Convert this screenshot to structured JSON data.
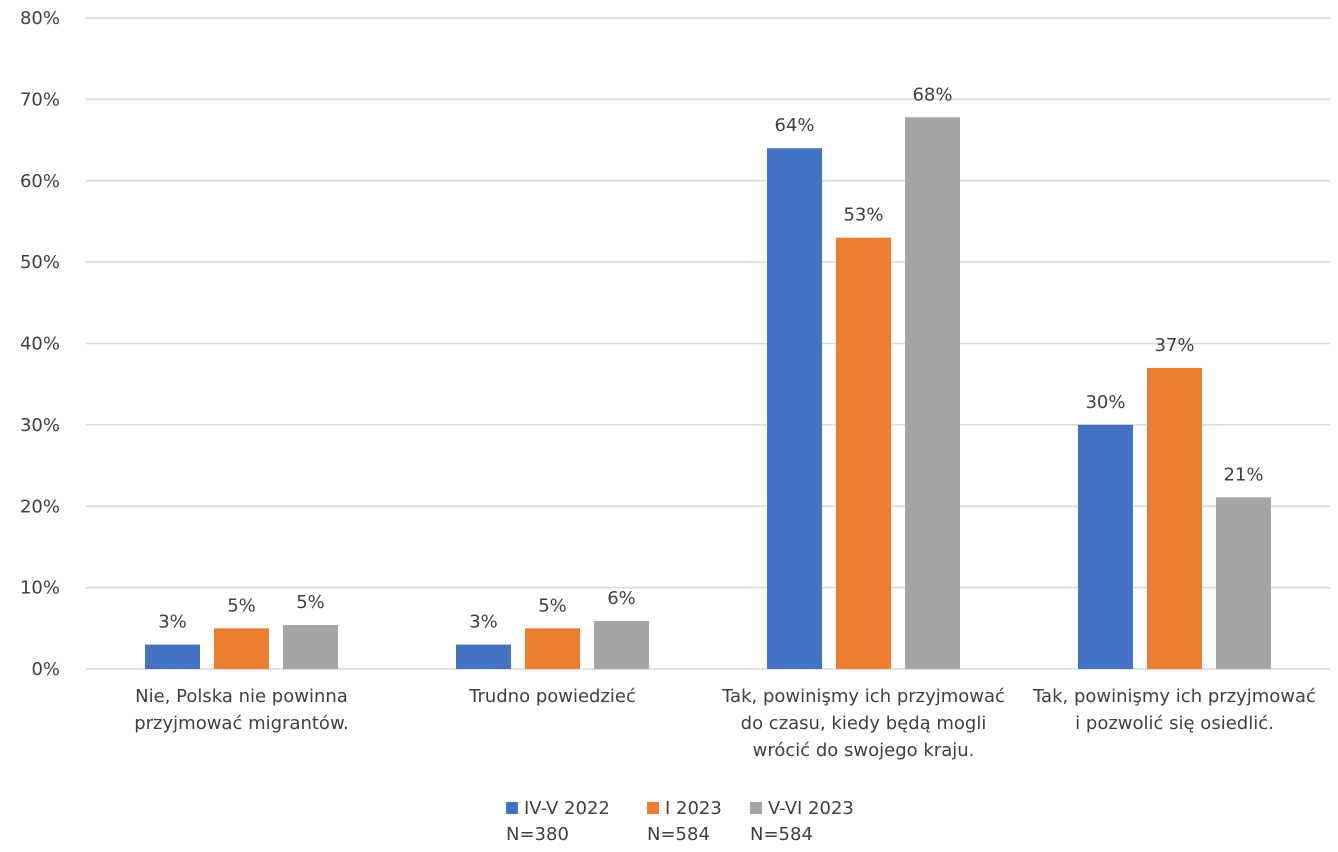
{
  "chart_data": {
    "type": "bar",
    "title": "",
    "xlabel": "",
    "ylabel": "",
    "ylim": [
      0,
      80
    ],
    "yticks": [
      "0%",
      "10%",
      "20%",
      "30%",
      "40%",
      "50%",
      "60%",
      "70%",
      "80%"
    ],
    "grid": true,
    "legend_position": "bottom",
    "categories": [
      [
        "Nie, Polska nie powinna",
        "przyjmować migrantów."
      ],
      [
        "Trudno powiedzieć"
      ],
      [
        "Tak, powinişmy ich przyjmować",
        "do czasu, kiedy będą mogli",
        "wrócić do swojego kraju."
      ],
      [
        "Tak, powinişmy ich przyjmować",
        "i pozwolić się osiedlić."
      ]
    ],
    "series": [
      {
        "name": "IV-V 2022",
        "n": "N=380",
        "color": "#4472C4",
        "values": [
          3,
          3,
          64,
          30
        ],
        "labels": [
          "3%",
          "3%",
          "64%",
          "30%"
        ]
      },
      {
        "name": "I 2023",
        "n": "N=584",
        "color": "#ED7D31",
        "values": [
          5,
          5,
          53,
          37
        ],
        "labels": [
          "5%",
          "5%",
          "53%",
          "37%"
        ]
      },
      {
        "name": "V-VI 2023",
        "n": "N=584",
        "color": "#A5A5A5",
        "values": [
          5.4,
          5.9,
          67.8,
          21.1
        ],
        "labels": [
          "5%",
          "6%",
          "68%",
          "21%"
        ]
      }
    ]
  }
}
